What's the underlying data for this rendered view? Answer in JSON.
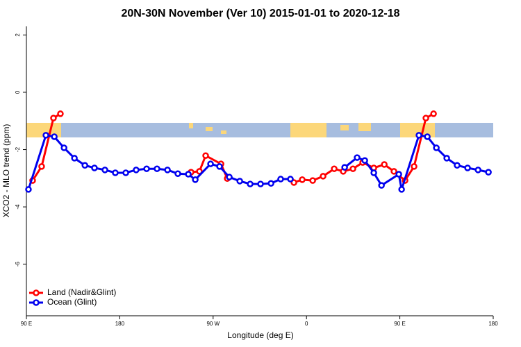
{
  "chart_data": {
    "type": "line",
    "title": "20N-30N November (Ver 10)   2015-01-01 to 2020-12-18",
    "x_label": "Longitude (deg E)",
    "y_label": "XCO2 - MLO trend (ppm)",
    "xlim": [
      90,
      540
    ],
    "ylim": [
      -7.8,
      2.3
    ],
    "xticks": [
      {
        "value": 90,
        "label": "90 E"
      },
      {
        "value": 180,
        "label": "180"
      },
      {
        "value": 270,
        "label": "90 W"
      },
      {
        "value": 360,
        "label": "0"
      },
      {
        "value": 450,
        "label": "90 E"
      },
      {
        "value": 540,
        "label": "180"
      }
    ],
    "yticks": [
      2,
      0,
      -2,
      -4,
      -6
    ],
    "legend": "bottom-left",
    "series": [
      {
        "name": "Land (Nadir&Glint)",
        "color": "#ff0000",
        "x": [
          96.0,
          104.7,
          116.1,
          122.8,
          null,
          248.7,
          256.8,
          262.8,
          277.6,
          283.6,
          null,
          347.9,
          355.9,
          366.0,
          376.0,
          386.7,
          395.4,
          404.8,
          414.2,
          424.9,
          435.0,
          444.3,
          455.0,
          463.7,
          475.1,
          482.5
        ],
        "values": [
          -3.08,
          -2.59,
          -0.9,
          -0.75,
          null,
          -2.79,
          -2.76,
          -2.21,
          -2.5,
          -3.01,
          null,
          -3.15,
          -3.05,
          -3.08,
          -2.93,
          -2.67,
          -2.76,
          -2.67,
          -2.45,
          -2.64,
          -2.52,
          -2.76,
          -3.08,
          -2.59,
          -0.9,
          -0.75
        ]
      },
      {
        "name": "Ocean (Glint)",
        "color": "#0000ee",
        "x": [
          92.0,
          108.8,
          116.9,
          126.3,
          136.3,
          146.4,
          155.6,
          165.7,
          175.7,
          185.8,
          195.8,
          205.9,
          215.9,
          226.0,
          236.0,
          246.1,
          252.8,
          267.5,
          276.2,
          285.6,
          295.7,
          305.7,
          315.7,
          325.8,
          335.1,
          344.5,
          null,
          396.8,
          408.8,
          416.2,
          424.9,
          432.3,
          449.0,
          451.7,
          468.4,
          476.5,
          485.2,
          495.2,
          505.2,
          515.3,
          525.4,
          535.4
        ],
        "values": [
          -3.39,
          -1.5,
          -1.55,
          -1.94,
          -2.3,
          -2.55,
          -2.64,
          -2.71,
          -2.81,
          -2.81,
          -2.71,
          -2.67,
          -2.67,
          -2.71,
          -2.84,
          -2.86,
          -3.05,
          -2.5,
          -2.59,
          -2.96,
          -3.1,
          -3.2,
          -3.2,
          -3.18,
          -3.03,
          -3.03,
          null,
          -2.62,
          -2.28,
          -2.38,
          -2.81,
          -3.25,
          -2.86,
          -3.39,
          -1.5,
          -1.55,
          -1.94,
          -2.3,
          -2.55,
          -2.64,
          -2.71,
          -2.79
        ]
      }
    ]
  }
}
